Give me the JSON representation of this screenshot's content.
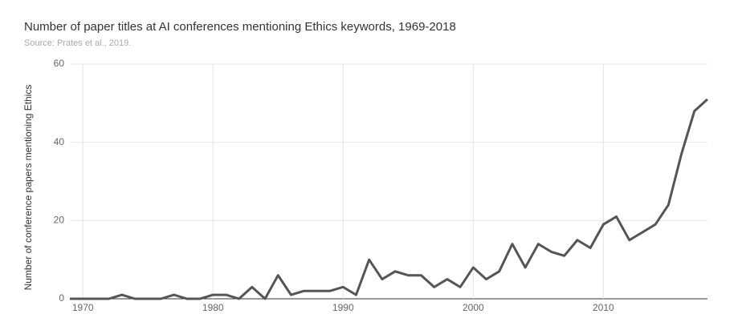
{
  "chart_data": {
    "type": "line",
    "title": "Number of paper titles at AI conferences mentioning Ethics keywords, 1969-2018",
    "subtitle": "Source: Prates et al., 2019.",
    "y_label": "Number of conference papers mentioning Ethics",
    "x": [
      1969,
      1970,
      1971,
      1972,
      1973,
      1974,
      1975,
      1976,
      1977,
      1978,
      1979,
      1980,
      1981,
      1982,
      1983,
      1984,
      1985,
      1986,
      1987,
      1988,
      1989,
      1990,
      1991,
      1992,
      1993,
      1994,
      1995,
      1996,
      1997,
      1998,
      1999,
      2000,
      2001,
      2002,
      2003,
      2004,
      2005,
      2006,
      2007,
      2008,
      2009,
      2010,
      2011,
      2012,
      2013,
      2014,
      2015,
      2016,
      2017,
      2018
    ],
    "series": [
      {
        "color": "#555555",
        "values": [
          0,
          0,
          0,
          0,
          1,
          0,
          0,
          0,
          1,
          0,
          0,
          1,
          1,
          0,
          3,
          0,
          6,
          1,
          2,
          2,
          2,
          3,
          1,
          10,
          5,
          7,
          6,
          6,
          3,
          5,
          3,
          8,
          5,
          7,
          14,
          8,
          14,
          12,
          11,
          15,
          13,
          19,
          21,
          15,
          17,
          19,
          24,
          37,
          48,
          51
        ]
      }
    ],
    "xlim": [
      1969,
      2018
    ],
    "xticks": [
      1970,
      1980,
      1990,
      2000,
      2010
    ],
    "ylim": [
      0,
      60
    ],
    "yticks": [
      0,
      20,
      40,
      60
    ],
    "grid": true
  }
}
